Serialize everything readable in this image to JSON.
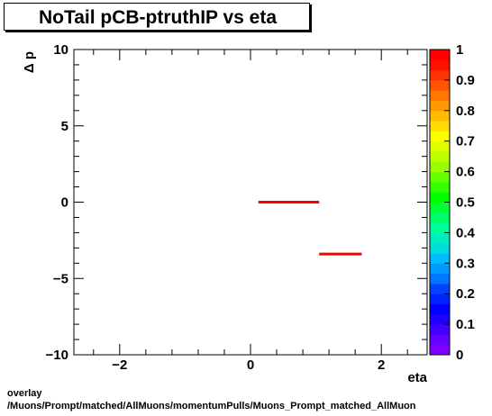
{
  "chart_data": {
    "type": "line",
    "title": "NoTail pCB-ptruthIP vs eta",
    "xlabel": "eta",
    "ylabel": "Δ p",
    "xlim": [
      -2.7,
      2.7
    ],
    "ylim": [
      -10,
      10
    ],
    "x_ticks": [
      "−2",
      "0",
      "2"
    ],
    "y_ticks": [
      "10",
      "5",
      "0",
      "−5",
      "−10"
    ],
    "series": [
      {
        "segments": [
          {
            "x0": 0.12,
            "x1": 1.05,
            "y": 0.0
          },
          {
            "x0": 1.05,
            "x1": 1.7,
            "y": -3.4
          }
        ],
        "color": "#ff0000"
      }
    ],
    "colorbar": {
      "range": [
        0,
        1
      ],
      "labels": [
        "1",
        "0.9",
        "0.8",
        "0.7",
        "0.6",
        "0.5",
        "0.4",
        "0.3",
        "0.2",
        "0.1",
        "0"
      ]
    },
    "grid": false
  },
  "footer": {
    "line1": "overlay",
    "line2": "/Muons/Prompt/matched/AllMuons/momentumPulls/Muons_Prompt_matched_AllMuon"
  }
}
